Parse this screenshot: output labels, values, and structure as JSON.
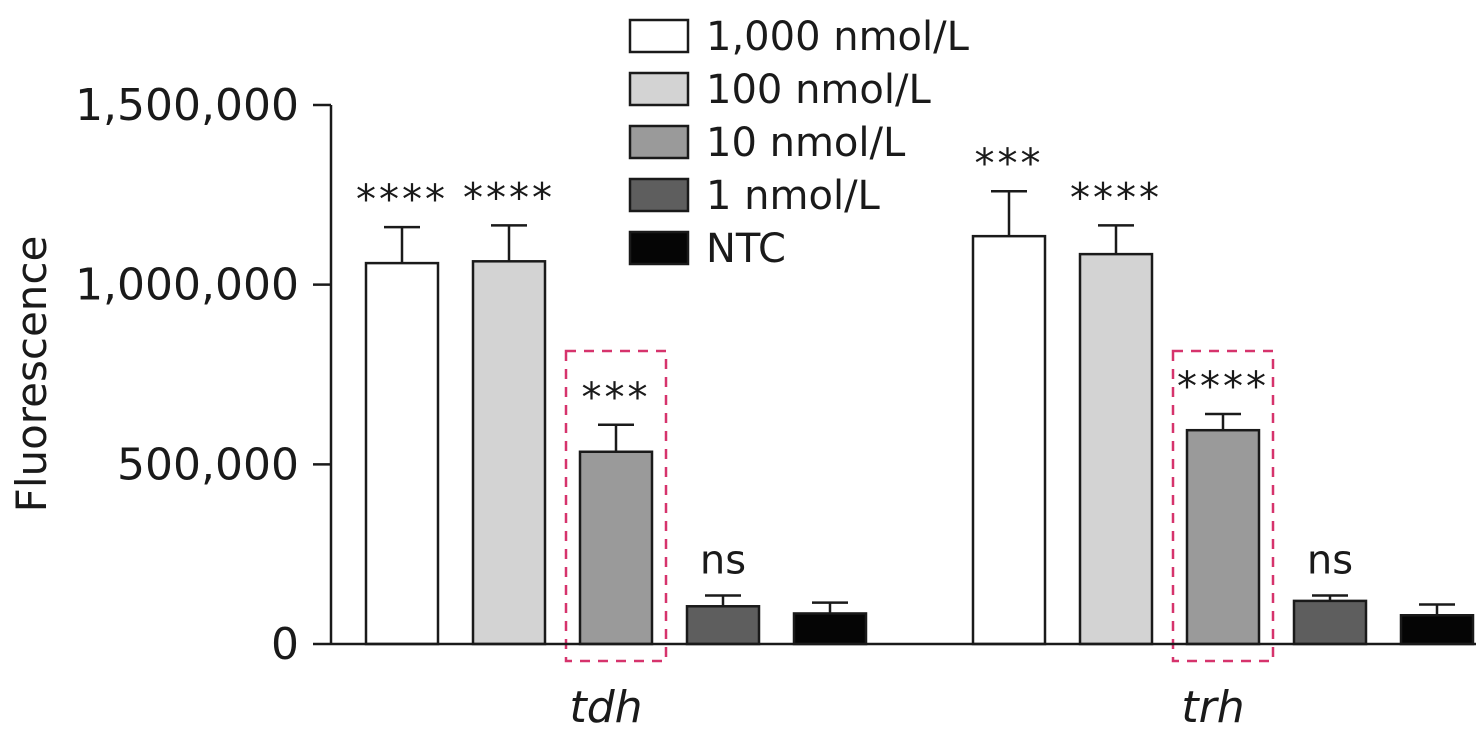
{
  "chart_data": {
    "type": "bar",
    "ylabel": "Fluorescence",
    "xlabel": "",
    "ylim": [
      0,
      1500000
    ],
    "yticks": [
      0,
      500000,
      1000000,
      1500000
    ],
    "ytick_labels": [
      "0",
      "500,000",
      "1,000,000",
      "1,500,000"
    ],
    "categories": [
      "tdh",
      "trh"
    ],
    "legend_position": "top-center",
    "grid": false,
    "series": [
      {
        "name": "1,000 nmol/L",
        "color": "#ffffff",
        "values": [
          1060000,
          1135000
        ],
        "errors": [
          100000,
          125000
        ],
        "significance": [
          "****",
          "***"
        ]
      },
      {
        "name": "100 nmol/L",
        "color": "#d3d3d3",
        "values": [
          1065000,
          1085000
        ],
        "errors": [
          100000,
          80000
        ],
        "significance": [
          "****",
          "****"
        ]
      },
      {
        "name": "10 nmol/L",
        "color": "#9a9a9a",
        "values": [
          535000,
          595000
        ],
        "errors": [
          75000,
          45000
        ],
        "significance": [
          "***",
          "****"
        ]
      },
      {
        "name": "1 nmol/L",
        "color": "#5e5e5e",
        "values": [
          105000,
          120000
        ],
        "errors": [
          30000,
          15000
        ],
        "significance": [
          "ns",
          "ns"
        ]
      },
      {
        "name": "NTC",
        "color": "#050505",
        "values": [
          85000,
          80000
        ],
        "errors": [
          30000,
          30000
        ],
        "significance": [
          "",
          ""
        ]
      }
    ],
    "highlight": {
      "series": "10 nmol/L",
      "color": "#d6336c",
      "style": "dashed"
    }
  }
}
